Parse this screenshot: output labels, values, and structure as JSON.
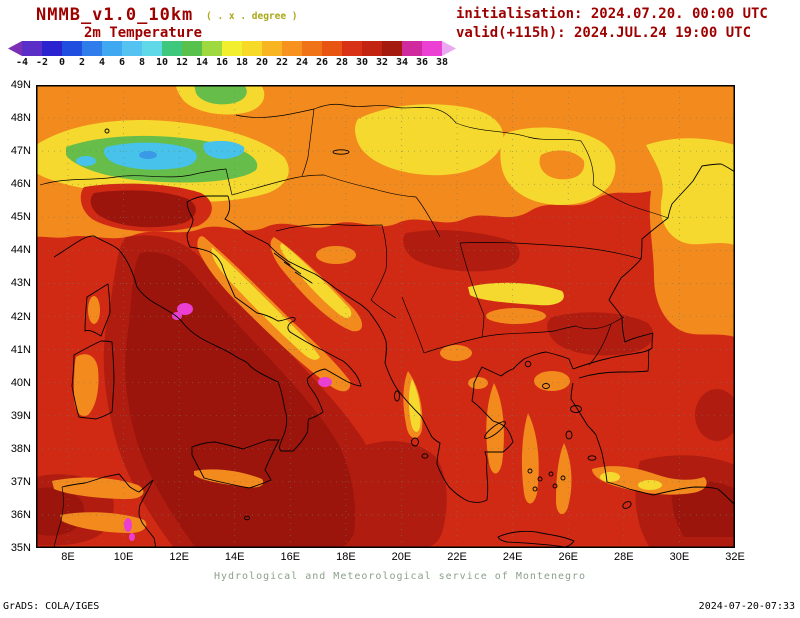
{
  "header": {
    "model_title": "NMMB_v1.0_10km",
    "degree_note": "( . x . degree )",
    "variable_label": "2m Temperature",
    "init_line": "initialisation: 2024.07.20. 00:00 UTC",
    "valid_line": "valid(+115h): 2024.JUL.24 19:00 UTC"
  },
  "colorbar": {
    "ticks": [
      "-4",
      "-2",
      "0",
      "2",
      "4",
      "6",
      "8",
      "10",
      "12",
      "14",
      "16",
      "18",
      "20",
      "22",
      "24",
      "26",
      "28",
      "30",
      "32",
      "34",
      "36",
      "38"
    ],
    "colors": [
      "#7a2fb5",
      "#5b2ec8",
      "#2b23cf",
      "#204fe0",
      "#2f7dea",
      "#3fa8f0",
      "#55c3f2",
      "#5fd9e8",
      "#3ec87e",
      "#57c14c",
      "#9ed93f",
      "#f2ef2f",
      "#f7d928",
      "#f9b422",
      "#f6921d",
      "#f07317",
      "#e85412",
      "#d93115",
      "#c32412",
      "#a51a0e",
      "#cf2b9f",
      "#ec3fd4",
      "#e9a8ef"
    ]
  },
  "map": {
    "lat_labels": [
      "49N",
      "48N",
      "47N",
      "46N",
      "45N",
      "44N",
      "43N",
      "42N",
      "41N",
      "40N",
      "39N",
      "38N",
      "37N",
      "36N",
      "35N"
    ],
    "lon_labels": [
      "8E",
      "10E",
      "12E",
      "14E",
      "16E",
      "18E",
      "20E",
      "22E",
      "24E",
      "26E",
      "28E",
      "30E",
      "32E"
    ]
  },
  "chart_data": {
    "type": "heatmap",
    "title": "2m Temperature",
    "model": "NMMB_v1.0_10km",
    "init": "2024.07.20. 00:00 UTC",
    "valid": "2024.JUL.24 19:00 UTC (+115h)",
    "scale_ticks_degC": [
      -4,
      -2,
      0,
      2,
      4,
      6,
      8,
      10,
      12,
      14,
      16,
      18,
      20,
      22,
      24,
      26,
      28,
      30,
      32,
      34,
      36,
      38
    ],
    "lat_range_deg_n": [
      35,
      49
    ],
    "lon_range_deg_e": [
      8,
      32
    ],
    "features": [
      {
        "region": "Alps band ~9E-15E / 46N-48N",
        "approx_temp_c": "6-16, coldest cyan core 6-10"
      },
      {
        "region": "Po valley / northern Italy",
        "approx_temp_c": "30-34"
      },
      {
        "region": "Pannonian plain ~19E-24E / 46N-48N",
        "approx_temp_c": "16-20 (yellow)"
      },
      {
        "region": "Adriatic coastal band",
        "approx_temp_c": "18-24"
      },
      {
        "region": "Central-southern Italy, Tyrrhenian and Ionian seas",
        "approx_temp_c": "30-34 (dark red)"
      },
      {
        "region": "hotspot ~12.2E 42.2N",
        "approx_temp_c": "36-38 (magenta)"
      },
      {
        "region": "hotspot ~17.2E 40.0N",
        "approx_temp_c": "36-38 (magenta)"
      },
      {
        "region": "hotspot ~10.2E 35.7N (Tunisia)",
        "approx_temp_c": "36-38 (magenta)"
      },
      {
        "region": "Aegean / Greece",
        "approx_temp_c": "24-30 with orange streaks"
      },
      {
        "region": "west Black Sea coast (NE corner)",
        "approx_temp_c": "18-24"
      },
      {
        "region": "SW Anatolia interior",
        "approx_temp_c": "30-34"
      }
    ]
  },
  "footer": {
    "service_caption": "Hydrological and Meteorological service of Montenegro",
    "grads_credit": "GrADS: COLA/IGES",
    "timestamp": "2024-07-20-07:33"
  }
}
